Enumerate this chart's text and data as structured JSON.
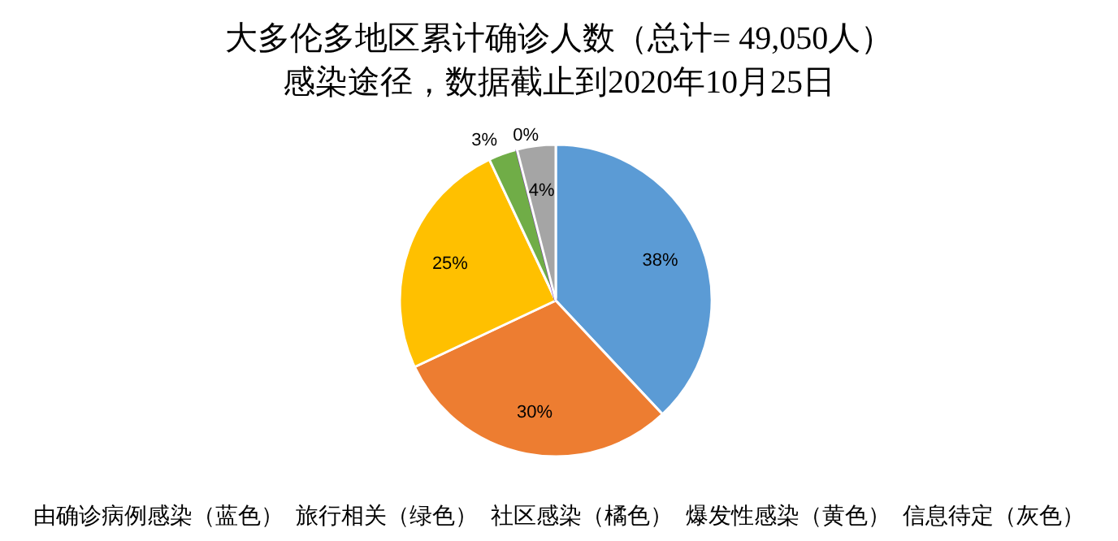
{
  "chart_data": {
    "type": "pie",
    "title": "大多伦多地区累计确诊人数（总计= 49,050人）",
    "subtitle": "感染途径，数据截止到2020年10月25日",
    "categories": [
      null,
      null,
      null,
      null,
      null,
      null
    ],
    "values": [
      38,
      30,
      25,
      3,
      0,
      4
    ],
    "colors": [
      "#5b9bd5",
      "#ed7d31",
      "#ffc000",
      "#70ad47",
      "#7030a0",
      "#a5a5a5"
    ],
    "value_labels": [
      "38%",
      "30%",
      "25%",
      "3%",
      "0%",
      "4%"
    ],
    "annotations": [
      "由确诊病例感染（蓝色）  旅行相关（绿色）  社区感染（橘色）  爆发性感染（黄色）  信息待定（灰色）"
    ]
  }
}
